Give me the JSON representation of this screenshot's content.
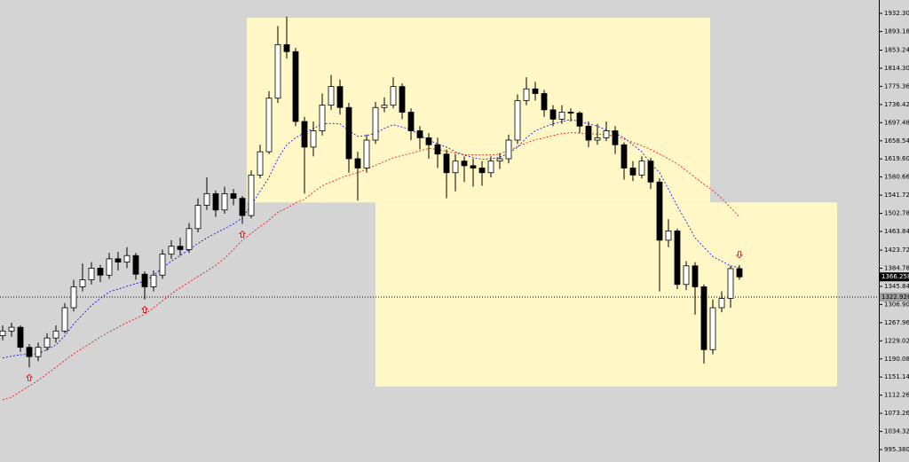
{
  "chart_data": {
    "type": "candlestick",
    "background": "#d4d4d4",
    "up_color": "#ffffff",
    "down_color": "#000000",
    "xlim": [
      -0.3,
      98.7
    ],
    "ylim": [
      968.7,
      1960.9
    ],
    "yticks": [
      {
        "value": 1932.3,
        "label": "1932.300"
      },
      {
        "value": 1893.18,
        "label": "1893.180"
      },
      {
        "value": 1853.24,
        "label": "1853.240"
      },
      {
        "value": 1814.3,
        "label": "1814.300"
      },
      {
        "value": 1775.36,
        "label": "1775.360"
      },
      {
        "value": 1736.42,
        "label": "1736.420"
      },
      {
        "value": 1697.48,
        "label": "1697.480"
      },
      {
        "value": 1658.54,
        "label": "1658.540"
      },
      {
        "value": 1619.6,
        "label": "1619.600"
      },
      {
        "value": 1580.66,
        "label": "1580.660"
      },
      {
        "value": 1541.72,
        "label": "1541.720"
      },
      {
        "value": 1502.78,
        "label": "1502.780"
      },
      {
        "value": 1463.84,
        "label": "1463.840"
      },
      {
        "value": 1423.72,
        "label": "1423.720"
      },
      {
        "value": 1384.78,
        "label": "1384.780"
      },
      {
        "value": 1345.84,
        "label": "1345.840"
      },
      {
        "value": 1306.9,
        "label": "1306.900"
      },
      {
        "value": 1267.96,
        "label": "1267.960"
      },
      {
        "value": 1229.02,
        "label": "1229.020"
      },
      {
        "value": 1190.08,
        "label": "1190.080"
      },
      {
        "value": 1151.14,
        "label": "1151.140"
      },
      {
        "value": 1112.26,
        "label": "1112.260"
      },
      {
        "value": 1073.26,
        "label": "1073.260"
      },
      {
        "value": 1034.32,
        "label": "1034.320"
      },
      {
        "value": 995.38,
        "label": "995.380"
      }
    ],
    "open": [
      1240,
      1250,
      1258,
      1215,
      1195,
      1215,
      1235,
      1250,
      1300,
      1345,
      1360,
      1385,
      1370,
      1405,
      1398,
      1412,
      1372,
      1345,
      1370,
      1415,
      1432,
      1425,
      1470,
      1520,
      1545,
      1510,
      1545,
      1535,
      1498,
      1585,
      1635,
      1750,
      1865,
      1850,
      1700,
      1645,
      1680,
      1735,
      1775,
      1730,
      1620,
      1600,
      1660,
      1730,
      1735,
      1775,
      1720,
      1680,
      1665,
      1650,
      1630,
      1590,
      1615,
      1605,
      1600,
      1590,
      1615,
      1620,
      1660,
      1745,
      1770,
      1760,
      1725,
      1705,
      1720,
      1718,
      1690,
      1660,
      1665,
      1680,
      1650,
      1600,
      1585,
      1615,
      1570,
      1445,
      1465,
      1350,
      1390,
      1345,
      1210,
      1300,
      1320,
      1384
    ],
    "high": [
      1262,
      1268,
      1262,
      1222,
      1225,
      1245,
      1262,
      1310,
      1360,
      1395,
      1398,
      1392,
      1418,
      1420,
      1430,
      1418,
      1378,
      1380,
      1425,
      1445,
      1450,
      1482,
      1535,
      1580,
      1552,
      1560,
      1555,
      1540,
      1595,
      1650,
      1765,
      1905,
      1925,
      1858,
      1710,
      1700,
      1760,
      1800,
      1790,
      1740,
      1635,
      1672,
      1742,
      1752,
      1795,
      1782,
      1728,
      1690,
      1675,
      1665,
      1640,
      1630,
      1625,
      1620,
      1615,
      1625,
      1632,
      1672,
      1758,
      1795,
      1785,
      1768,
      1735,
      1735,
      1728,
      1722,
      1700,
      1695,
      1700,
      1690,
      1655,
      1615,
      1625,
      1622,
      1578,
      1490,
      1470,
      1400,
      1398,
      1350,
      1318,
      1335,
      1390,
      1392
    ],
    "low": [
      1230,
      1238,
      1205,
      1172,
      1185,
      1208,
      1225,
      1245,
      1292,
      1335,
      1350,
      1355,
      1362,
      1380,
      1385,
      1360,
      1318,
      1335,
      1362,
      1405,
      1412,
      1418,
      1462,
      1510,
      1495,
      1502,
      1520,
      1480,
      1492,
      1578,
      1630,
      1740,
      1835,
      1690,
      1545,
      1625,
      1670,
      1725,
      1715,
      1590,
      1530,
      1590,
      1652,
      1720,
      1728,
      1705,
      1660,
      1640,
      1620,
      1600,
      1535,
      1550,
      1570,
      1560,
      1562,
      1580,
      1598,
      1610,
      1652,
      1735,
      1745,
      1710,
      1690,
      1695,
      1700,
      1675,
      1645,
      1650,
      1658,
      1630,
      1575,
      1572,
      1578,
      1555,
      1335,
      1430,
      1340,
      1338,
      1285,
      1180,
      1200,
      1290,
      1300,
      1360
    ],
    "close": [
      1250,
      1258,
      1215,
      1195,
      1215,
      1235,
      1250,
      1300,
      1345,
      1360,
      1385,
      1370,
      1405,
      1398,
      1412,
      1372,
      1345,
      1370,
      1415,
      1432,
      1425,
      1470,
      1520,
      1545,
      1510,
      1545,
      1535,
      1498,
      1585,
      1635,
      1750,
      1865,
      1850,
      1700,
      1645,
      1680,
      1735,
      1775,
      1730,
      1620,
      1600,
      1660,
      1730,
      1735,
      1775,
      1720,
      1680,
      1665,
      1650,
      1630,
      1590,
      1615,
      1605,
      1600,
      1590,
      1615,
      1620,
      1660,
      1745,
      1770,
      1760,
      1725,
      1705,
      1720,
      1718,
      1690,
      1660,
      1665,
      1680,
      1650,
      1600,
      1585,
      1615,
      1570,
      1445,
      1465,
      1350,
      1390,
      1345,
      1210,
      1300,
      1320,
      1384,
      1366.258
    ],
    "moving_averages": [
      {
        "color": "#0000ff",
        "values": [
          1192,
          1196,
          1199,
          1200,
          1201,
          1210,
          1220,
          1240,
          1265,
          1285,
          1305,
          1320,
          1334,
          1340,
          1346,
          1352,
          1357,
          1370,
          1385,
          1400,
          1412,
          1425,
          1438,
          1450,
          1460,
          1470,
          1480,
          1493,
          1520,
          1550,
          1580,
          1620,
          1650,
          1665,
          1676,
          1685,
          1695,
          1696,
          1695,
          1680,
          1668,
          1670,
          1675,
          1685,
          1693,
          1688,
          1683,
          1670,
          1660,
          1652,
          1645,
          1635,
          1628,
          1622,
          1619,
          1620,
          1623,
          1632,
          1645,
          1665,
          1680,
          1688,
          1695,
          1700,
          1704,
          1700,
          1695,
          1690,
          1682,
          1675,
          1665,
          1650,
          1635,
          1610,
          1590,
          1555,
          1518,
          1485,
          1450,
          1430,
          1410,
          1400,
          1390,
          1386
        ]
      },
      {
        "color": "#ff0000",
        "values": [
          1102,
          1108,
          1120,
          1132,
          1144,
          1158,
          1172,
          1187,
          1201,
          1213,
          1225,
          1237,
          1248,
          1258,
          1268,
          1277,
          1286,
          1300,
          1315,
          1330,
          1343,
          1355,
          1367,
          1379,
          1391,
          1406,
          1425,
          1445,
          1460,
          1474,
          1488,
          1505,
          1514,
          1525,
          1533,
          1548,
          1562,
          1570,
          1578,
          1585,
          1590,
          1598,
          1606,
          1614,
          1622,
          1627,
          1632,
          1637,
          1642,
          1640,
          1636,
          1632,
          1629,
          1628,
          1628,
          1628,
          1630,
          1638,
          1646,
          1654,
          1661,
          1665,
          1670,
          1674,
          1676,
          1675,
          1674,
          1673,
          1672,
          1668,
          1662,
          1655,
          1648,
          1640,
          1630,
          1620,
          1609,
          1595,
          1580,
          1565,
          1552,
          1535,
          1515,
          1495
        ]
      }
    ],
    "zones": [
      {
        "from": 27.5,
        "to": 79.7,
        "top": 1922.8,
        "bottom": 1526,
        "color": "#fff8c6"
      },
      {
        "from": 42,
        "to": 94,
        "top": 1526,
        "bottom": 1131,
        "color": "#fff8c6"
      }
    ],
    "markers": [
      {
        "index": 3,
        "direction": "up"
      },
      {
        "index": 16,
        "direction": "up"
      },
      {
        "index": 27,
        "direction": "up"
      },
      {
        "index": 83,
        "direction": "down"
      }
    ],
    "hline": {
      "value": 1322.926,
      "label": "1322.926"
    }
  }
}
